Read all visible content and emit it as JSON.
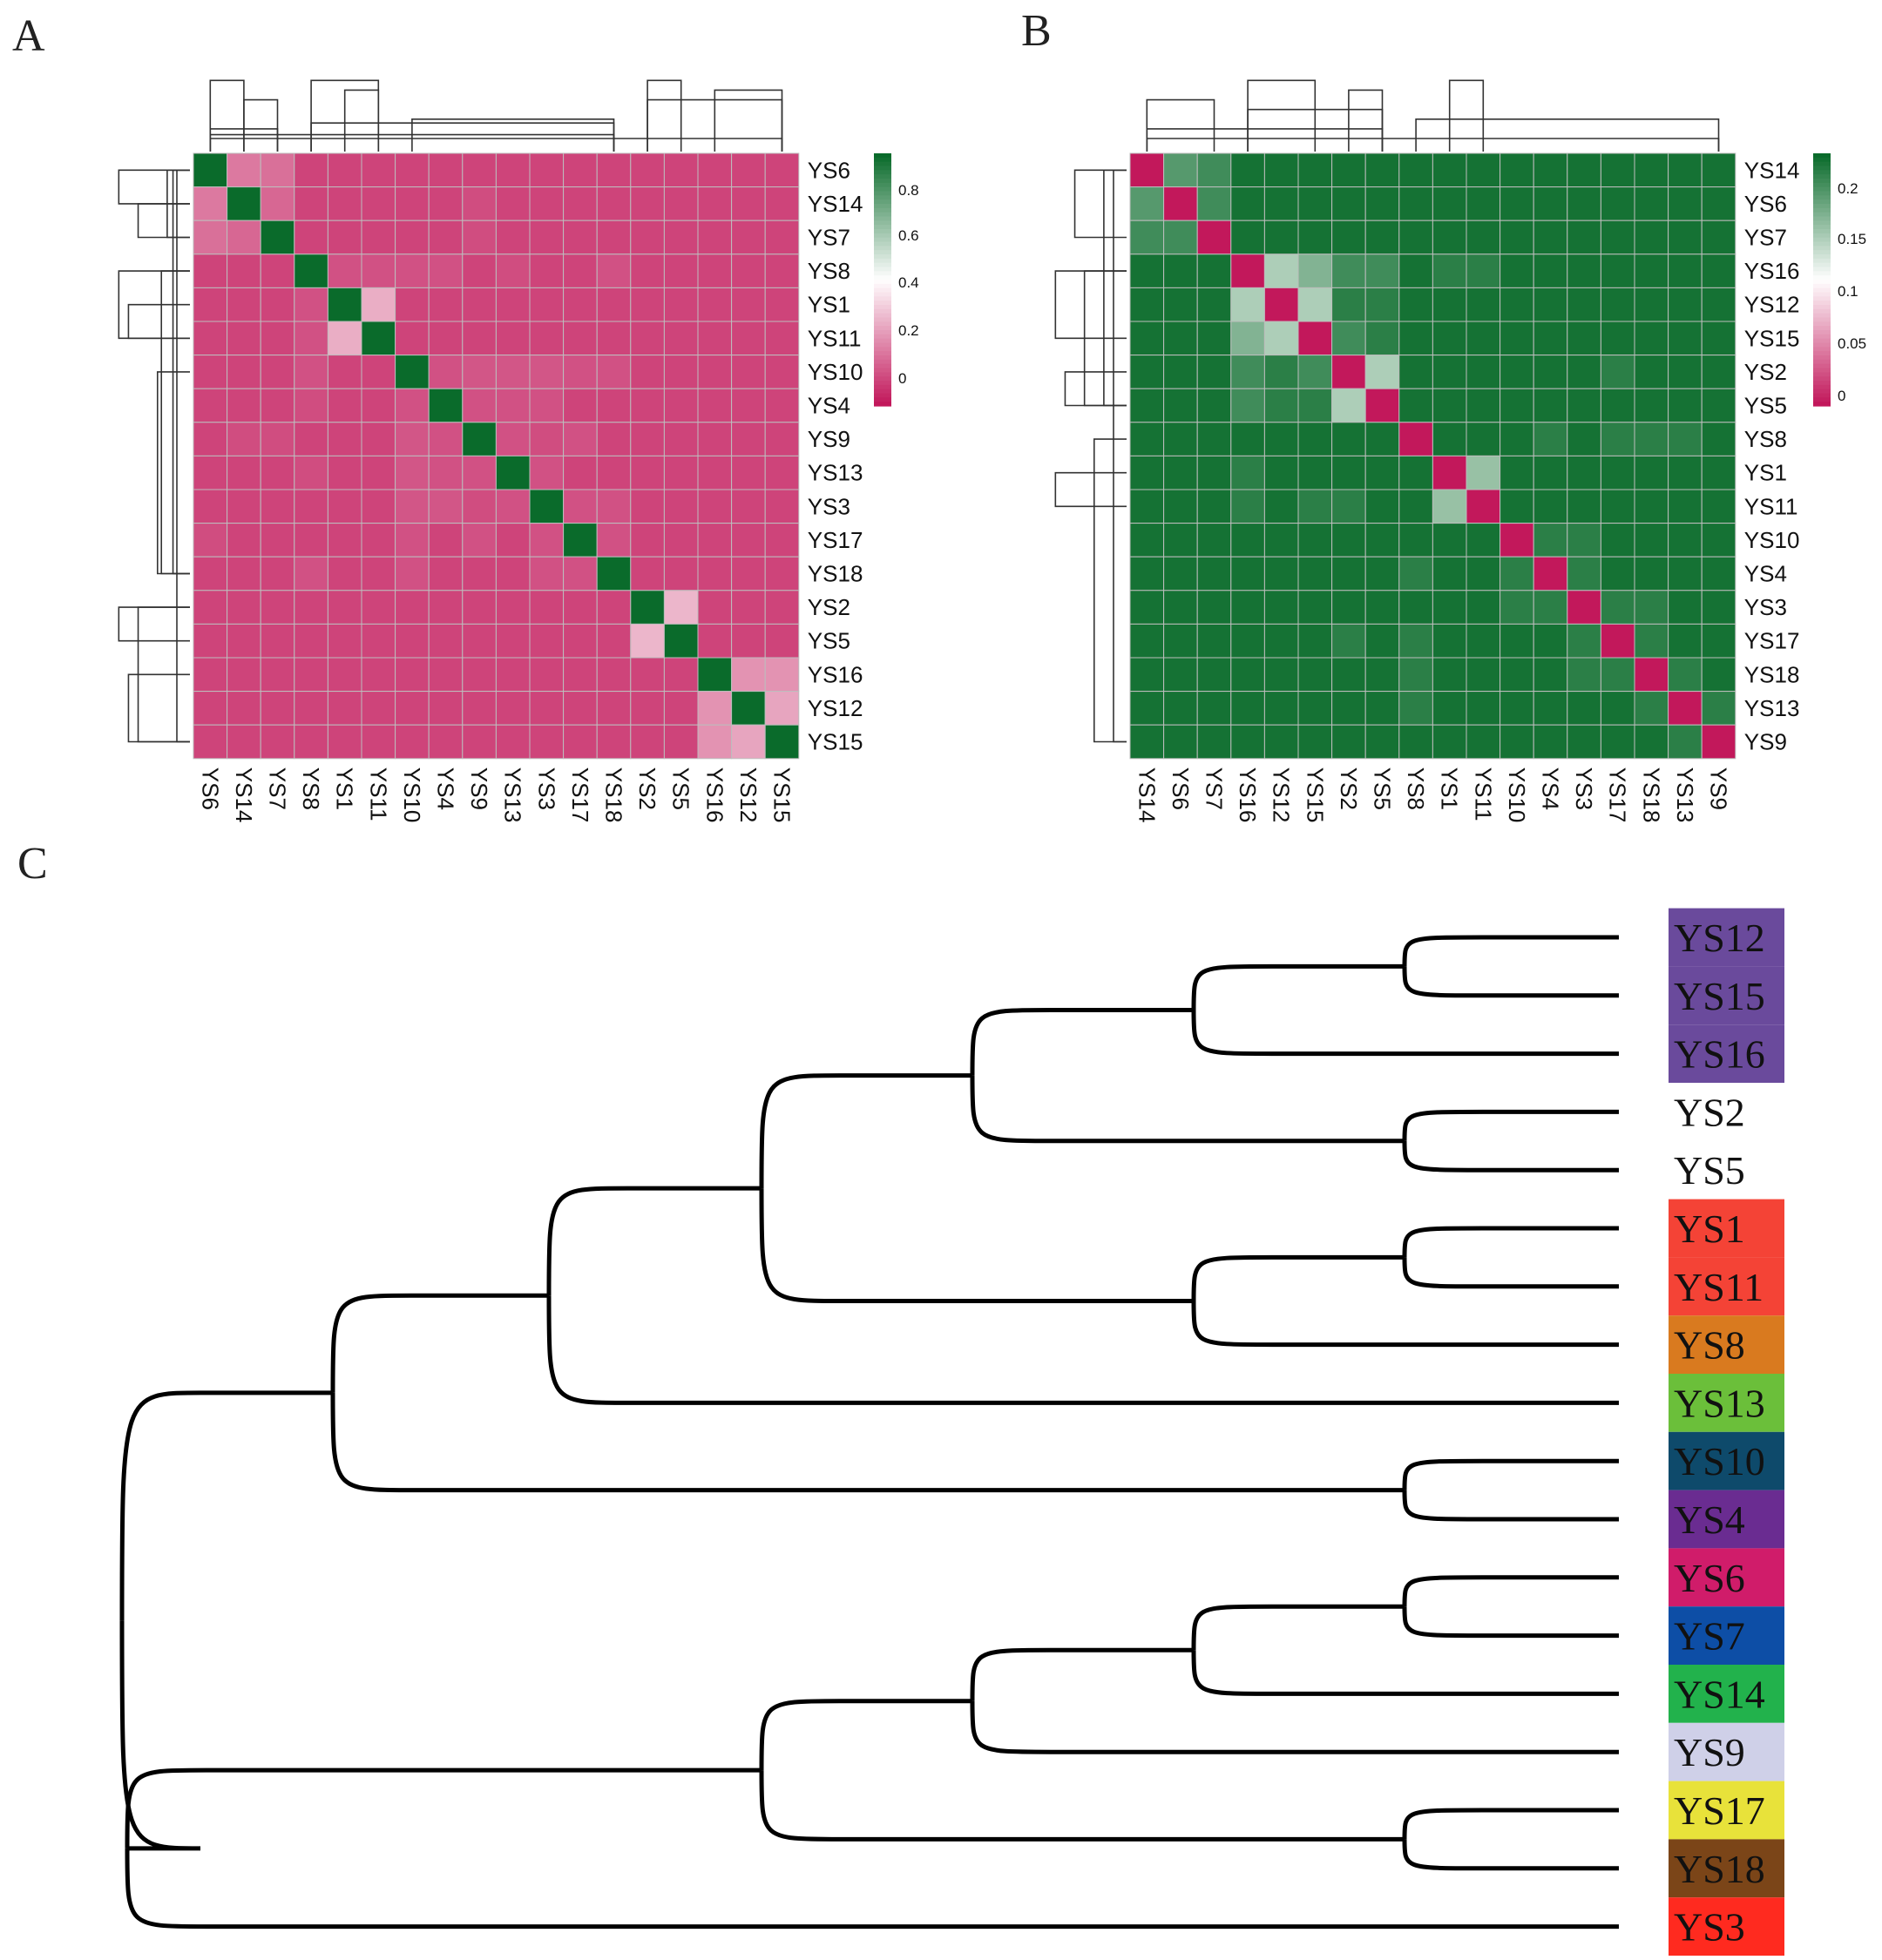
{
  "panels": {
    "a": "A",
    "b": "B",
    "c": "C"
  },
  "chart_data": [
    {
      "type": "heatmap",
      "rows": [
        "YS6",
        "YS14",
        "YS7",
        "YS8",
        "YS1",
        "YS11",
        "YS10",
        "YS4",
        "YS9",
        "YS13",
        "YS3",
        "YS17",
        "YS18",
        "YS2",
        "YS5",
        "YS16",
        "YS12",
        "YS15"
      ],
      "cols": [
        "YS6",
        "YS14",
        "YS7",
        "YS8",
        "YS1",
        "YS11",
        "YS10",
        "YS4",
        "YS9",
        "YS13",
        "YS3",
        "YS17",
        "YS18",
        "YS2",
        "YS5",
        "YS16",
        "YS12",
        "YS15"
      ],
      "colorbar": {
        "ticks": [
          "0.8",
          "0.6",
          "0.4",
          "0.2",
          "0"
        ],
        "range": [
          -0.1,
          0.95
        ],
        "colors": [
          "#c2185b",
          "#ffffff",
          "#0a6b2b"
        ]
      },
      "values": [
        [
          0.95,
          0.12,
          0.1,
          0.0,
          0.0,
          0.0,
          0.0,
          0.0,
          0.0,
          0.0,
          0.0,
          0.0,
          0.0,
          0.0,
          0.0,
          0.0,
          0.0,
          0.0
        ],
        [
          0.12,
          0.95,
          0.08,
          0.0,
          0.0,
          0.0,
          0.0,
          0.0,
          0.02,
          0.0,
          0.0,
          0.0,
          0.0,
          0.0,
          0.0,
          0.0,
          0.0,
          0.0
        ],
        [
          0.1,
          0.08,
          0.95,
          0.0,
          0.0,
          0.0,
          0.0,
          0.0,
          0.02,
          0.0,
          0.0,
          0.0,
          0.0,
          0.0,
          0.0,
          0.0,
          0.0,
          0.0
        ],
        [
          0.0,
          0.0,
          0.0,
          0.95,
          0.03,
          0.03,
          0.03,
          0.03,
          0.0,
          0.02,
          0.0,
          0.0,
          0.03,
          0.0,
          0.0,
          0.0,
          0.0,
          0.0
        ],
        [
          0.0,
          0.0,
          0.0,
          0.03,
          0.95,
          0.24,
          0.0,
          0.0,
          0.0,
          0.0,
          0.0,
          0.0,
          0.0,
          0.0,
          0.0,
          0.0,
          0.0,
          0.0
        ],
        [
          0.0,
          0.0,
          0.0,
          0.03,
          0.24,
          0.95,
          0.0,
          0.0,
          0.0,
          0.0,
          0.0,
          0.0,
          0.0,
          0.0,
          0.0,
          0.0,
          0.0,
          0.0
        ],
        [
          0.0,
          0.0,
          0.0,
          0.03,
          0.0,
          0.0,
          0.95,
          0.03,
          0.04,
          0.04,
          0.04,
          0.03,
          0.03,
          0.0,
          0.0,
          0.0,
          0.0,
          0.0
        ],
        [
          0.0,
          0.0,
          0.0,
          0.02,
          0.0,
          0.0,
          0.03,
          0.95,
          0.03,
          0.03,
          0.03,
          0.0,
          0.0,
          0.0,
          0.0,
          0.0,
          0.0,
          0.0
        ],
        [
          0.0,
          0.02,
          0.02,
          0.0,
          0.0,
          0.0,
          0.04,
          0.03,
          0.95,
          0.03,
          0.02,
          0.03,
          0.0,
          0.0,
          0.0,
          0.0,
          0.0,
          0.0
        ],
        [
          0.0,
          0.0,
          0.0,
          0.02,
          0.0,
          0.0,
          0.04,
          0.03,
          0.03,
          0.95,
          0.03,
          0.0,
          0.0,
          0.0,
          0.0,
          0.0,
          0.0,
          0.0
        ],
        [
          0.0,
          0.0,
          0.0,
          0.0,
          0.0,
          0.0,
          0.04,
          0.04,
          0.02,
          0.03,
          0.95,
          0.03,
          0.03,
          0.0,
          0.0,
          0.0,
          0.0,
          0.0
        ],
        [
          0.02,
          0.0,
          0.0,
          0.0,
          0.0,
          0.0,
          0.03,
          0.0,
          0.03,
          0.0,
          0.03,
          0.95,
          0.03,
          0.0,
          0.0,
          0.0,
          0.0,
          0.0
        ],
        [
          0.0,
          0.0,
          0.0,
          0.03,
          0.0,
          0.0,
          0.03,
          0.0,
          0.0,
          0.0,
          0.03,
          0.03,
          0.95,
          0.0,
          0.0,
          0.0,
          0.0,
          0.0
        ],
        [
          0.0,
          0.0,
          0.0,
          0.0,
          0.0,
          0.0,
          0.0,
          0.0,
          0.0,
          0.0,
          0.0,
          0.0,
          0.0,
          0.95,
          0.26,
          0.0,
          0.0,
          0.0
        ],
        [
          0.0,
          0.0,
          0.0,
          0.0,
          0.0,
          0.0,
          0.0,
          0.0,
          0.0,
          0.0,
          0.0,
          0.0,
          0.0,
          0.26,
          0.95,
          0.0,
          0.0,
          0.0
        ],
        [
          0.0,
          0.0,
          0.0,
          0.0,
          0.0,
          0.0,
          0.0,
          0.0,
          0.0,
          0.0,
          0.0,
          0.0,
          0.0,
          0.0,
          0.0,
          0.95,
          0.18,
          0.18
        ],
        [
          0.0,
          0.0,
          0.0,
          0.0,
          0.0,
          0.0,
          0.0,
          0.0,
          0.0,
          0.0,
          0.0,
          0.0,
          0.0,
          0.0,
          0.0,
          0.18,
          0.95,
          0.22
        ],
        [
          0.0,
          0.0,
          0.0,
          0.0,
          0.0,
          0.0,
          0.0,
          0.0,
          0.0,
          0.0,
          0.0,
          0.0,
          0.0,
          0.0,
          0.0,
          0.18,
          0.22,
          0.95
        ]
      ]
    },
    {
      "type": "heatmap",
      "rows": [
        "YS14",
        "YS6",
        "YS7",
        "YS16",
        "YS12",
        "YS15",
        "YS2",
        "YS5",
        "YS8",
        "YS1",
        "YS11",
        "YS10",
        "YS4",
        "YS3",
        "YS17",
        "YS18",
        "YS13",
        "YS9"
      ],
      "cols": [
        "YS14",
        "YS6",
        "YS7",
        "YS16",
        "YS12",
        "YS15",
        "YS2",
        "YS5",
        "YS8",
        "YS1",
        "YS11",
        "YS10",
        "YS4",
        "YS3",
        "YS17",
        "YS18",
        "YS13",
        "YS9"
      ],
      "colorbar": {
        "ticks": [
          "0.2",
          "0.15",
          "0.1",
          "0.05",
          "0"
        ],
        "range": [
          0,
          0.225
        ],
        "colors": [
          "#c2185b",
          "#ffffff",
          "#0a6b2b"
        ]
      },
      "values": [
        [
          0.0,
          0.19,
          0.2,
          0.22,
          0.22,
          0.22,
          0.22,
          0.22,
          0.22,
          0.22,
          0.22,
          0.22,
          0.22,
          0.22,
          0.22,
          0.22,
          0.22,
          0.22
        ],
        [
          0.19,
          0.0,
          0.2,
          0.22,
          0.22,
          0.22,
          0.22,
          0.22,
          0.22,
          0.22,
          0.22,
          0.22,
          0.22,
          0.22,
          0.22,
          0.22,
          0.22,
          0.22
        ],
        [
          0.2,
          0.2,
          0.0,
          0.22,
          0.22,
          0.22,
          0.22,
          0.22,
          0.22,
          0.22,
          0.22,
          0.22,
          0.22,
          0.22,
          0.22,
          0.22,
          0.22,
          0.22
        ],
        [
          0.22,
          0.22,
          0.22,
          0.0,
          0.15,
          0.17,
          0.2,
          0.2,
          0.22,
          0.21,
          0.21,
          0.22,
          0.22,
          0.22,
          0.22,
          0.22,
          0.22,
          0.22
        ],
        [
          0.22,
          0.22,
          0.22,
          0.15,
          0.0,
          0.15,
          0.21,
          0.21,
          0.22,
          0.22,
          0.22,
          0.22,
          0.22,
          0.22,
          0.22,
          0.22,
          0.22,
          0.22
        ],
        [
          0.22,
          0.22,
          0.22,
          0.17,
          0.15,
          0.0,
          0.2,
          0.21,
          0.22,
          0.22,
          0.22,
          0.22,
          0.22,
          0.22,
          0.22,
          0.22,
          0.22,
          0.22
        ],
        [
          0.22,
          0.22,
          0.22,
          0.2,
          0.21,
          0.2,
          0.0,
          0.15,
          0.22,
          0.22,
          0.22,
          0.22,
          0.22,
          0.22,
          0.21,
          0.22,
          0.22,
          0.22
        ],
        [
          0.22,
          0.22,
          0.22,
          0.2,
          0.21,
          0.21,
          0.15,
          0.0,
          0.22,
          0.22,
          0.22,
          0.22,
          0.22,
          0.22,
          0.22,
          0.22,
          0.22,
          0.22
        ],
        [
          0.22,
          0.22,
          0.22,
          0.22,
          0.22,
          0.22,
          0.22,
          0.22,
          0.0,
          0.22,
          0.22,
          0.22,
          0.21,
          0.22,
          0.21,
          0.21,
          0.21,
          0.22
        ],
        [
          0.22,
          0.22,
          0.22,
          0.21,
          0.22,
          0.22,
          0.22,
          0.22,
          0.22,
          0.0,
          0.16,
          0.22,
          0.22,
          0.22,
          0.22,
          0.22,
          0.22,
          0.22
        ],
        [
          0.22,
          0.22,
          0.22,
          0.21,
          0.22,
          0.21,
          0.21,
          0.22,
          0.22,
          0.16,
          0.0,
          0.22,
          0.22,
          0.22,
          0.22,
          0.22,
          0.22,
          0.22
        ],
        [
          0.22,
          0.22,
          0.22,
          0.22,
          0.22,
          0.22,
          0.22,
          0.22,
          0.22,
          0.22,
          0.22,
          0.0,
          0.21,
          0.21,
          0.22,
          0.22,
          0.22,
          0.22
        ],
        [
          0.22,
          0.22,
          0.22,
          0.22,
          0.22,
          0.22,
          0.22,
          0.22,
          0.21,
          0.22,
          0.22,
          0.21,
          0.0,
          0.21,
          0.22,
          0.22,
          0.22,
          0.22
        ],
        [
          0.22,
          0.22,
          0.22,
          0.22,
          0.22,
          0.22,
          0.22,
          0.22,
          0.22,
          0.22,
          0.22,
          0.21,
          0.21,
          0.0,
          0.21,
          0.21,
          0.22,
          0.22
        ],
        [
          0.22,
          0.22,
          0.22,
          0.22,
          0.22,
          0.22,
          0.21,
          0.22,
          0.21,
          0.22,
          0.22,
          0.22,
          0.22,
          0.21,
          0.0,
          0.21,
          0.22,
          0.22
        ],
        [
          0.22,
          0.22,
          0.22,
          0.22,
          0.22,
          0.22,
          0.22,
          0.22,
          0.21,
          0.22,
          0.22,
          0.22,
          0.22,
          0.21,
          0.21,
          0.0,
          0.21,
          0.22
        ],
        [
          0.22,
          0.22,
          0.22,
          0.22,
          0.22,
          0.22,
          0.22,
          0.22,
          0.21,
          0.22,
          0.22,
          0.22,
          0.22,
          0.22,
          0.22,
          0.21,
          0.0,
          0.21
        ],
        [
          0.22,
          0.22,
          0.22,
          0.22,
          0.22,
          0.22,
          0.22,
          0.22,
          0.22,
          0.22,
          0.22,
          0.22,
          0.22,
          0.22,
          0.22,
          0.22,
          0.21,
          0.0
        ]
      ]
    },
    {
      "type": "tree",
      "leaves": [
        {
          "name": "YS12",
          "color": "#6a4a9c"
        },
        {
          "name": "YS15",
          "color": "#6a4a9c"
        },
        {
          "name": "YS16",
          "color": "#6a4a9c"
        },
        {
          "name": "YS2",
          "color": null
        },
        {
          "name": "YS5",
          "color": null
        },
        {
          "name": "YS1",
          "color": "#f44336"
        },
        {
          "name": "YS11",
          "color": "#f44336"
        },
        {
          "name": "YS8",
          "color": "#d97a1f"
        },
        {
          "name": "YS13",
          "color": "#6bbf3a"
        },
        {
          "name": "YS10",
          "color": "#0e4a6b"
        },
        {
          "name": "YS4",
          "color": "#6a2c91"
        },
        {
          "name": "YS6",
          "color": "#d01c6a"
        },
        {
          "name": "YS7",
          "color": "#0d4ea6"
        },
        {
          "name": "YS14",
          "color": "#22b24c"
        },
        {
          "name": "YS9",
          "color": "#cfd0e8"
        },
        {
          "name": "YS17",
          "color": "#e8e23a"
        },
        {
          "name": "YS18",
          "color": "#7b4518"
        },
        {
          "name": "YS3",
          "color": "#ff2a1f"
        }
      ]
    }
  ]
}
